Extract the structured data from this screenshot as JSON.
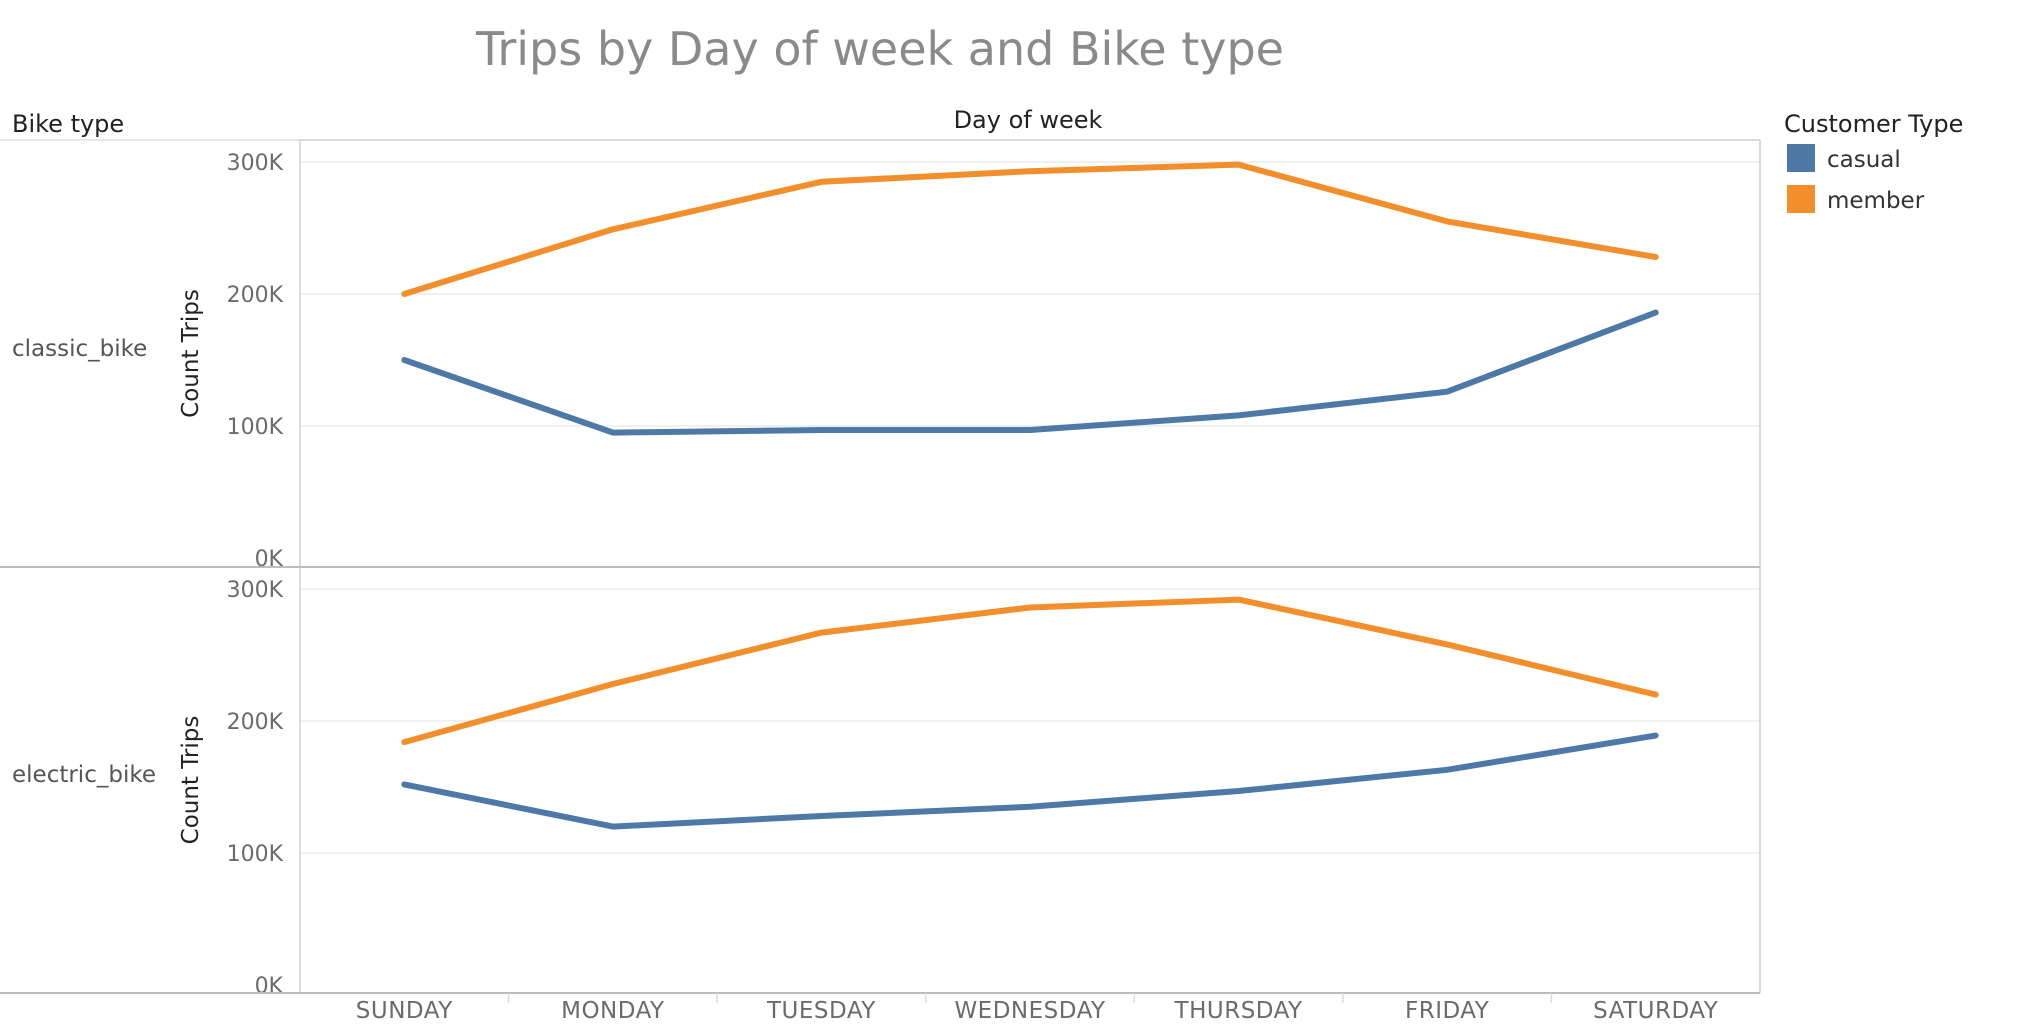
{
  "chart_data": {
    "type": "line",
    "title": "Trips by Day of week and Bike type",
    "column_header": "Day of week",
    "row_header": "Bike type",
    "ylabel": "Count Trips",
    "categories": [
      "SUNDAY",
      "MONDAY",
      "TUESDAY",
      "WEDNESDAY",
      "THURSDAY",
      "FRIDAY",
      "SATURDAY"
    ],
    "ylim": [
      0,
      300000
    ],
    "yticks": [
      0,
      100000,
      200000,
      300000
    ],
    "ytick_labels": [
      "0K",
      "100K",
      "200K",
      "300K"
    ],
    "grid": true,
    "legend": {
      "title": "Customer Type",
      "position": "top-right",
      "entries": [
        "casual",
        "member"
      ]
    },
    "panels": [
      {
        "name": "classic_bike",
        "series": [
          {
            "name": "casual",
            "color": "#4e79a7",
            "values": [
              150000,
              95000,
              97000,
              97000,
              108000,
              126000,
              186000
            ]
          },
          {
            "name": "member",
            "color": "#f28e2b",
            "values": [
              200000,
              249000,
              285000,
              293000,
              298000,
              255000,
              228000
            ]
          }
        ]
      },
      {
        "name": "electric_bike",
        "series": [
          {
            "name": "casual",
            "color": "#4e79a7",
            "values": [
              152000,
              120000,
              128000,
              135000,
              147000,
              163000,
              189000
            ]
          },
          {
            "name": "member",
            "color": "#f28e2b",
            "values": [
              184000,
              228000,
              267000,
              286000,
              292000,
              258000,
              220000
            ]
          }
        ]
      }
    ]
  }
}
